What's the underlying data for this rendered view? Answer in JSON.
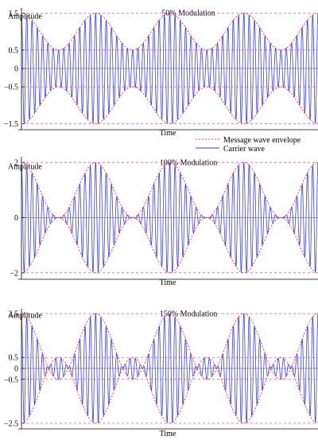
{
  "legend": {
    "position": "top-right (between first and second panels)",
    "items": [
      {
        "label": "Message wave envelope",
        "color": "#ff4040",
        "style": "dotted"
      },
      {
        "label": "Carrier wave",
        "color": "#3a3aff",
        "style": "solid"
      }
    ]
  },
  "chart_data": [
    {
      "type": "line",
      "title": "50% Modulation",
      "xlabel": "Time",
      "ylabel": "Amplitude",
      "modulation_index": 0.5,
      "ylim": [
        -1.6,
        1.6
      ],
      "yticks": [
        -1.5,
        -0.5,
        0,
        0.5,
        1.5
      ],
      "ytick_labels": [
        "−1.5",
        "−0.5",
        "0",
        "0.5",
        "1.5"
      ],
      "reference_lines": [
        -1.5,
        -0.5,
        0.5,
        1.5
      ],
      "message_cycles": 4,
      "carrier_cycles": 56,
      "series": [
        {
          "name": "Message wave envelope",
          "formula": "±(1 + 0.5·cos(message))",
          "color": "#ff4040"
        },
        {
          "name": "Carrier wave",
          "formula": "(1 + 0.5·cos(message))·cos(carrier)",
          "color": "#3a3aff"
        }
      ]
    },
    {
      "type": "line",
      "title": "100% Modulation",
      "xlabel": "Time",
      "ylabel": "Amplitude",
      "modulation_index": 1.0,
      "ylim": [
        -2.15,
        2.15
      ],
      "yticks": [
        -2,
        0,
        2
      ],
      "ytick_labels": [
        "−2",
        "0",
        "2"
      ],
      "reference_lines": [
        -2,
        2
      ],
      "message_cycles": 4,
      "carrier_cycles": 56,
      "series": [
        {
          "name": "Message wave envelope",
          "formula": "±(1 + cos(message))",
          "color": "#ff4040"
        },
        {
          "name": "Carrier wave",
          "formula": "(1 + cos(message))·cos(carrier)",
          "color": "#3a3aff"
        }
      ]
    },
    {
      "type": "line",
      "title": "150% Modulation",
      "xlabel": "Time",
      "ylabel": "Amplitude",
      "modulation_index": 1.5,
      "ylim": [
        -2.65,
        2.65
      ],
      "yticks": [
        -2.5,
        -0.5,
        0,
        0.5,
        2.5
      ],
      "ytick_labels": [
        "−2.5",
        "−0.5",
        "0",
        "0.5",
        "2.5"
      ],
      "reference_lines": [
        -2.5,
        -0.5,
        0.5,
        2.5
      ],
      "message_cycles": 4,
      "carrier_cycles": 56,
      "series": [
        {
          "name": "Message wave envelope",
          "formula": "±(1 + 1.5·cos(message))",
          "color": "#ff4040"
        },
        {
          "name": "Carrier wave",
          "formula": "(1 + 1.5·cos(message))·cos(carrier)",
          "color": "#3a3aff"
        }
      ]
    }
  ]
}
